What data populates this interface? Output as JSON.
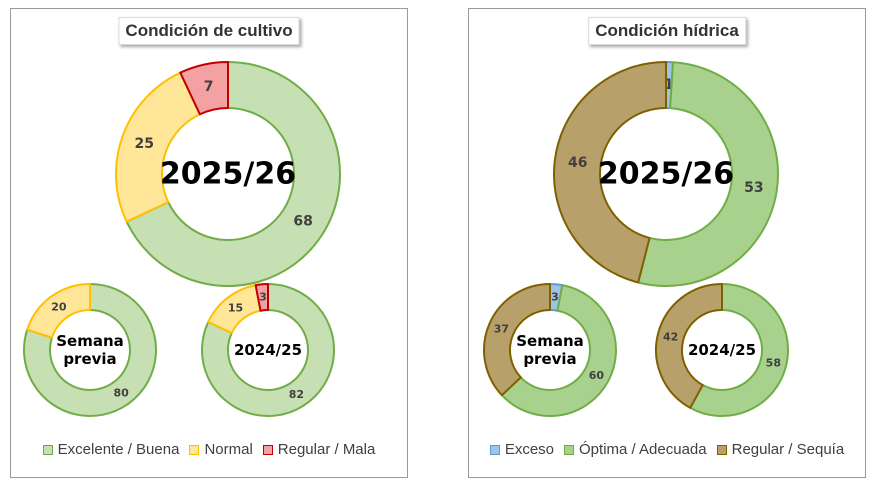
{
  "chart_data": [
    {
      "type": "donut",
      "title": "Condición de cultivo",
      "legend_position": "bottom",
      "categories": [
        "Excelente / Buena",
        "Normal",
        "Regular / Mala"
      ],
      "colors": [
        {
          "fill": "#c6e0b4",
          "stroke": "#70ad47"
        },
        {
          "fill": "#ffe699",
          "stroke": "#ffc000"
        },
        {
          "fill": "#f4a1a3",
          "stroke": "#c00000"
        }
      ],
      "series": [
        {
          "label": "2025/26",
          "values": [
            68,
            25,
            7
          ]
        },
        {
          "label": "Semana previa",
          "values": [
            80,
            20,
            0
          ]
        },
        {
          "label": "2024/25",
          "values": [
            82,
            15,
            3
          ]
        }
      ]
    },
    {
      "type": "donut",
      "title": "Condición hídrica",
      "legend_position": "bottom",
      "categories": [
        "Exceso",
        "Óptima / Adecuada",
        "Regular / Sequía"
      ],
      "colors": [
        {
          "fill": "#9dc3e6",
          "stroke": "#5b9bd5"
        },
        {
          "fill": "#a9d18e",
          "stroke": "#70ad47"
        },
        {
          "fill": "#b8a06a",
          "stroke": "#7f6000"
        }
      ],
      "series": [
        {
          "label": "2025/26",
          "values": [
            1,
            53,
            46
          ]
        },
        {
          "label": "Semana previa",
          "values": [
            3,
            60,
            37
          ]
        },
        {
          "label": "2024/25",
          "values": [
            0,
            58,
            42
          ]
        }
      ]
    }
  ]
}
